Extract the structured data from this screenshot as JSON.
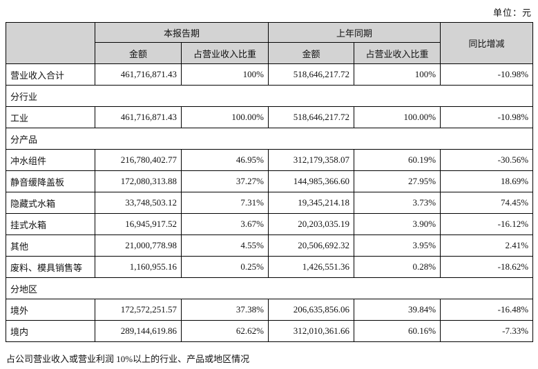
{
  "unit_label": "单位：元",
  "footer_note": "占公司营业收入或营业利润 10%以上的行业、产品或地区情况",
  "colors": {
    "header_gray": "#d3d3d3",
    "label_green": "#d6e8ce",
    "border": "#000000"
  },
  "table": {
    "header": {
      "corner": "",
      "current_period": "本报告期",
      "prior_period": "上年同期",
      "yoy_change": "同比增减",
      "amount_current": "金额",
      "share_current": "占营业收入比重",
      "amount_prior": "金额",
      "share_prior": "占营业收入比重"
    },
    "rows": [
      {
        "type": "total",
        "label": "营业收入合计",
        "cur_amount": "461,716,871.43",
        "cur_share": "100%",
        "prior_amount": "518,646,217.72",
        "prior_share": "100%",
        "yoy": "-10.98%"
      },
      {
        "type": "section",
        "label": "分行业"
      },
      {
        "type": "data",
        "label": "工业",
        "cur_amount": "461,716,871.43",
        "cur_share": "100.00%",
        "prior_amount": "518,646,217.72",
        "prior_share": "100.00%",
        "yoy": "-10.98%"
      },
      {
        "type": "section",
        "label": "分产品"
      },
      {
        "type": "data",
        "label": "冲水组件",
        "cur_amount": "216,780,402.77",
        "cur_share": "46.95%",
        "prior_amount": "312,179,358.07",
        "prior_share": "60.19%",
        "yoy": "-30.56%"
      },
      {
        "type": "data",
        "label": "静音缓降盖板",
        "cur_amount": "172,080,313.88",
        "cur_share": "37.27%",
        "prior_amount": "144,985,366.60",
        "prior_share": "27.95%",
        "yoy": "18.69%"
      },
      {
        "type": "data",
        "label": "隐藏式水箱",
        "cur_amount": "33,748,503.12",
        "cur_share": "7.31%",
        "prior_amount": "19,345,214.18",
        "prior_share": "3.73%",
        "yoy": "74.45%"
      },
      {
        "type": "data",
        "label": "挂式水箱",
        "cur_amount": "16,945,917.52",
        "cur_share": "3.67%",
        "prior_amount": "20,203,035.19",
        "prior_share": "3.90%",
        "yoy": "-16.12%"
      },
      {
        "type": "data",
        "label": "其他",
        "cur_amount": "21,000,778.98",
        "cur_share": "4.55%",
        "prior_amount": "20,506,692.32",
        "prior_share": "3.95%",
        "yoy": "2.41%"
      },
      {
        "type": "data",
        "label": "废料、模具销售等",
        "cur_amount": "1,160,955.16",
        "cur_share": "0.25%",
        "prior_amount": "1,426,551.36",
        "prior_share": "0.28%",
        "yoy": "-18.62%"
      },
      {
        "type": "section",
        "label": "分地区"
      },
      {
        "type": "data",
        "label": "境外",
        "cur_amount": "172,572,251.57",
        "cur_share": "37.38%",
        "prior_amount": "206,635,856.06",
        "prior_share": "39.84%",
        "yoy": "-16.48%"
      },
      {
        "type": "data",
        "label": "境内",
        "cur_amount": "289,144,619.86",
        "cur_share": "62.62%",
        "prior_amount": "312,010,361.66",
        "prior_share": "60.16%",
        "yoy": "-7.33%"
      }
    ]
  }
}
